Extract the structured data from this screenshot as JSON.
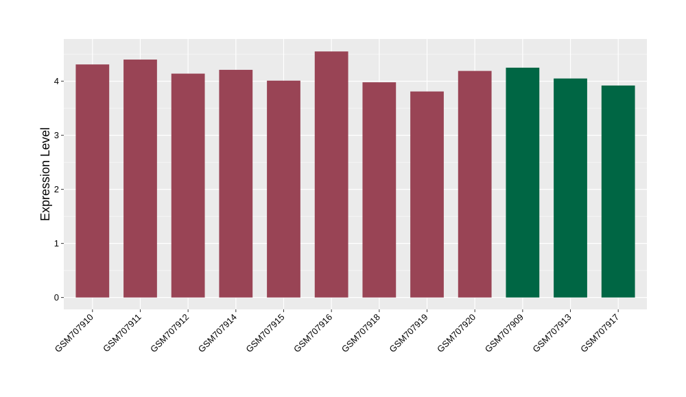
{
  "chart_data": {
    "type": "bar",
    "title": "",
    "xlabel": "",
    "ylabel": "Expression Level",
    "ylim": [
      -0.22,
      4.78
    ],
    "yticks": [
      0,
      1,
      2,
      3,
      4
    ],
    "grid": true,
    "legend": "none",
    "categories": [
      "GSM707910",
      "GSM707911",
      "GSM707912",
      "GSM707914",
      "GSM707915",
      "GSM707916",
      "GSM707918",
      "GSM707919",
      "GSM707920",
      "GSM707909",
      "GSM707913",
      "GSM707917"
    ],
    "values": [
      4.31,
      4.4,
      4.14,
      4.21,
      4.01,
      4.55,
      3.98,
      3.81,
      4.19,
      4.25,
      4.05,
      3.92
    ],
    "bar_colors": [
      "#994455",
      "#994455",
      "#994455",
      "#994455",
      "#994455",
      "#994455",
      "#994455",
      "#994455",
      "#994455",
      "#006644",
      "#006644",
      "#006644"
    ],
    "panel_background": "#EBEBEB",
    "grid_color": "#FFFFFF"
  }
}
